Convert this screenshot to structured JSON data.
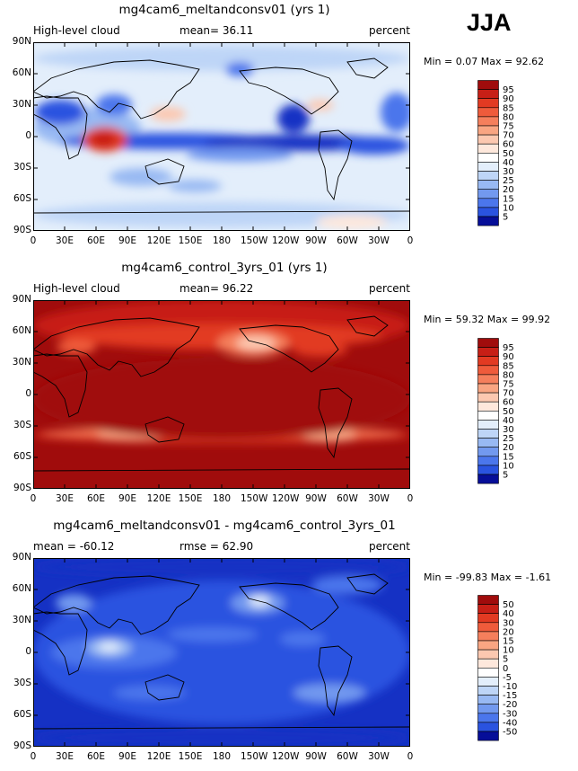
{
  "season": "JJA",
  "x_ticks": [
    "0",
    "30E",
    "60E",
    "90E",
    "120E",
    "150E",
    "180",
    "150W",
    "120W",
    "90W",
    "60W",
    "30W",
    "0"
  ],
  "y_ticks": [
    "90N",
    "60N",
    "30N",
    "0",
    "30S",
    "60S",
    "90S"
  ],
  "colors": {
    "pos": [
      "#fee8dc",
      "#fcc8b0",
      "#f9a582",
      "#f57f5c",
      "#ef5b3b",
      "#e23a22",
      "#c71f16",
      "#a00c0c"
    ],
    "neg": [
      "#e3eefb",
      "#bed5f7",
      "#98b9f3",
      "#7299ef",
      "#4b76ec",
      "#2a53e0",
      "#1531c4",
      "#060e98"
    ]
  },
  "panels": [
    {
      "title": "mg4cam6_meltandconsv01 (yrs 1)",
      "left": "High-level cloud",
      "mid": "mean=  36.11",
      "right": "percent",
      "stats": "Min =    0.07  Max =   92.62",
      "cbar_labels": [
        "95",
        "90",
        "85",
        "80",
        "75",
        "70",
        "60",
        "50",
        "40",
        "30",
        "25",
        "20",
        "15",
        "10",
        "5"
      ]
    },
    {
      "title": "mg4cam6_control_3yrs_01 (yrs 1)",
      "left": "High-level cloud",
      "mid": "mean=  96.22",
      "right": "percent",
      "stats": "Min =  59.32  Max =  99.92",
      "cbar_labels": [
        "95",
        "90",
        "85",
        "80",
        "75",
        "70",
        "60",
        "50",
        "40",
        "30",
        "25",
        "20",
        "15",
        "10",
        "5"
      ]
    },
    {
      "title": "mg4cam6_meltandconsv01 - mg4cam6_control_3yrs_01",
      "left": "mean = -60.12",
      "mid": "rmse =  62.90",
      "right": "percent",
      "stats": "Min = -99.83  Max =   -1.61",
      "cbar_labels": [
        "50",
        "40",
        "30",
        "20",
        "15",
        "10",
        "5",
        "0",
        "-5",
        "-10",
        "-15",
        "-20",
        "-30",
        "-40",
        "-50"
      ]
    }
  ],
  "chart_data": [
    {
      "type": "heatmap",
      "title": "mg4cam6_meltandconsv01 (yrs 1)",
      "variable": "High-level cloud",
      "units": "percent",
      "mean": 36.11,
      "min": 0.07,
      "max": 92.62,
      "x_range": [
        "0",
        "0"
      ],
      "y_range": [
        "90S",
        "90N"
      ],
      "contour_levels": [
        5,
        10,
        15,
        20,
        25,
        30,
        40,
        50,
        60,
        70,
        75,
        80,
        85,
        90,
        95
      ]
    },
    {
      "type": "heatmap",
      "title": "mg4cam6_control_3yrs_01 (yrs 1)",
      "variable": "High-level cloud",
      "units": "percent",
      "mean": 96.22,
      "min": 59.32,
      "max": 99.92,
      "x_range": [
        "0",
        "0"
      ],
      "y_range": [
        "90S",
        "90N"
      ],
      "contour_levels": [
        5,
        10,
        15,
        20,
        25,
        30,
        40,
        50,
        60,
        70,
        75,
        80,
        85,
        90,
        95
      ]
    },
    {
      "type": "heatmap",
      "title": "mg4cam6_meltandconsv01 - mg4cam6_control_3yrs_01",
      "units": "percent",
      "mean": -60.12,
      "rmse": 62.9,
      "min": -99.83,
      "max": -1.61,
      "x_range": [
        "0",
        "0"
      ],
      "y_range": [
        "90S",
        "90N"
      ],
      "contour_levels": [
        -50,
        -40,
        -30,
        -20,
        -15,
        -10,
        -5,
        0,
        5,
        10,
        15,
        20,
        30,
        40,
        50
      ]
    }
  ]
}
